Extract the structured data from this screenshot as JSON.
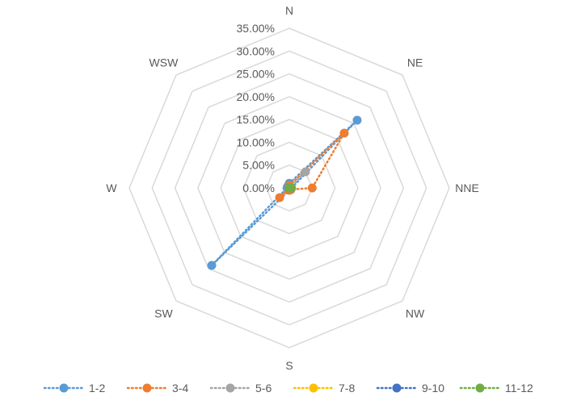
{
  "chart_data": {
    "type": "radar",
    "categories": [
      "N",
      "NE",
      "NNE",
      "NW",
      "S",
      "SW",
      "W",
      "WSW"
    ],
    "r_ticks": [
      "0.00%",
      "5.00%",
      "10.00%",
      "15.00%",
      "20.00%",
      "25.00%",
      "30.00%",
      "35.00%"
    ],
    "rlim": [
      0,
      35
    ],
    "grid": true,
    "legend_position": "bottom",
    "series": [
      {
        "name": "1-2",
        "color": "#5B9BD5",
        "values": [
          1.0,
          21.0,
          0.5,
          0.5,
          0.5,
          24.0,
          0.5,
          0.5
        ]
      },
      {
        "name": "3-4",
        "color": "#ED7D31",
        "values": [
          0.5,
          17.0,
          5.0,
          0.5,
          0.5,
          3.0,
          0.0,
          0.0
        ]
      },
      {
        "name": "5-6",
        "color": "#A5A5A5",
        "values": [
          0.0,
          5.0,
          0.0,
          0.0,
          0.0,
          0.0,
          0.0,
          0.0
        ]
      },
      {
        "name": "7-8",
        "color": "#FFC000",
        "values": [
          0.0,
          0.0,
          0.0,
          0.0,
          0.0,
          0.0,
          0.0,
          0.0
        ]
      },
      {
        "name": "9-10",
        "color": "#4472C4",
        "values": [
          0.0,
          0.0,
          0.0,
          0.0,
          0.0,
          0.0,
          0.0,
          0.0
        ]
      },
      {
        "name": "11-12",
        "color": "#70AD47",
        "values": [
          0.0,
          0.0,
          0.5,
          0.0,
          0.0,
          0.0,
          0.0,
          0.0
        ]
      }
    ]
  }
}
